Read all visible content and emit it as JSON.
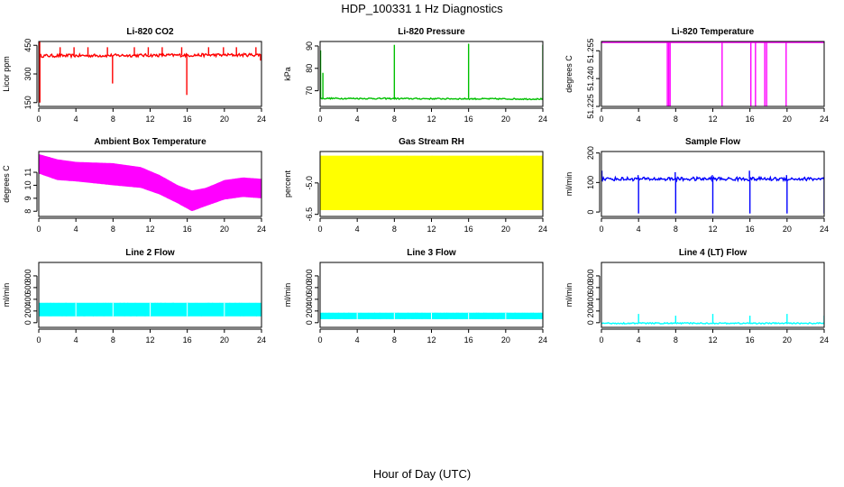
{
  "figure": {
    "title": "HDP_100331  1 Hz Diagnostics",
    "xlabel": "Hour of Day (UTC)"
  },
  "chart_data": [
    {
      "type": "line",
      "title": "Li-820 CO2",
      "ylabel": "Licor ppm",
      "color": "#ff0000",
      "xlim": [
        0,
        24
      ],
      "xticks": [
        "0",
        "4",
        "8",
        "12",
        "16",
        "20",
        "24"
      ],
      "ylim": [
        130,
        470
      ],
      "yticks": [
        "150",
        "300",
        "450"
      ],
      "baseline": [
        395,
        400
      ],
      "noise": 8,
      "spikes": [
        {
          "x": 0.1,
          "y": 470
        },
        {
          "x": 0.12,
          "y": 150
        },
        {
          "x": 2.3,
          "y": 440
        },
        {
          "x": 3.8,
          "y": 440
        },
        {
          "x": 5.3,
          "y": 440
        },
        {
          "x": 7.4,
          "y": 440
        },
        {
          "x": 7.95,
          "y": 250
        },
        {
          "x": 10.3,
          "y": 440
        },
        {
          "x": 11.8,
          "y": 440
        },
        {
          "x": 13.3,
          "y": 440
        },
        {
          "x": 15.4,
          "y": 440
        },
        {
          "x": 15.95,
          "y": 190
        },
        {
          "x": 18.3,
          "y": 440
        },
        {
          "x": 19.9,
          "y": 440
        },
        {
          "x": 21.3,
          "y": 440
        },
        {
          "x": 23.4,
          "y": 440
        },
        {
          "x": 23.9,
          "y": 370
        }
      ]
    },
    {
      "type": "line",
      "title": "Li-820 Pressure",
      "ylabel": "kPa",
      "color": "#00c000",
      "xlim": [
        0,
        24
      ],
      "xticks": [
        "0",
        "4",
        "8",
        "12",
        "16",
        "20",
        "24"
      ],
      "ylim": [
        63,
        92
      ],
      "yticks": [
        "70",
        "80",
        "90"
      ],
      "baseline": [
        66.6,
        66.3
      ],
      "noise": 0.3,
      "spikes": [
        {
          "x": 0.05,
          "y": 88
        },
        {
          "x": 0.3,
          "y": 78
        },
        {
          "x": 8.0,
          "y": 90.5
        },
        {
          "x": 16.0,
          "y": 91
        },
        {
          "x": 24.0,
          "y": 90.5
        }
      ]
    },
    {
      "type": "line",
      "title": "Li-820 Temperature",
      "ylabel": "degrees C",
      "color": "#ff00ff",
      "xlim": [
        0,
        24
      ],
      "xticks": [
        "0",
        "4",
        "8",
        "12",
        "16",
        "20",
        "24"
      ],
      "ylim": [
        51.225,
        51.26
      ],
      "yticks": [
        "51.225",
        "51.240",
        "51.255"
      ],
      "baseline": [
        51.2595,
        51.2595
      ],
      "noise": 0,
      "spikes": [
        {
          "x": 7.1,
          "y": 51.225
        },
        {
          "x": 7.25,
          "y": 51.225
        },
        {
          "x": 7.4,
          "y": 51.225
        },
        {
          "x": 13.0,
          "y": 51.225
        },
        {
          "x": 16.1,
          "y": 51.225
        },
        {
          "x": 16.6,
          "y": 51.225
        },
        {
          "x": 17.6,
          "y": 51.225
        },
        {
          "x": 17.8,
          "y": 51.225
        },
        {
          "x": 19.9,
          "y": 51.225
        }
      ]
    },
    {
      "type": "area",
      "title": "Ambient Box Temperature",
      "ylabel": "degrees C",
      "color": "#ff00ff",
      "xlim": [
        0,
        24
      ],
      "xticks": [
        "0",
        "4",
        "8",
        "12",
        "16",
        "20",
        "24"
      ],
      "ylim": [
        7.6,
        12.6
      ],
      "yticks": [
        "8",
        "9",
        "10",
        "11"
      ],
      "upper": [
        [
          0,
          12.4
        ],
        [
          2,
          12.0
        ],
        [
          4,
          11.8
        ],
        [
          8,
          11.7
        ],
        [
          11,
          11.4
        ],
        [
          13,
          10.8
        ],
        [
          15,
          10.0
        ],
        [
          16.5,
          9.6
        ],
        [
          18,
          9.8
        ],
        [
          20,
          10.4
        ],
        [
          22,
          10.6
        ],
        [
          24,
          10.5
        ]
      ],
      "lower": [
        [
          0,
          10.9
        ],
        [
          2,
          10.4
        ],
        [
          4,
          10.3
        ],
        [
          8,
          10.0
        ],
        [
          11,
          9.8
        ],
        [
          13,
          9.3
        ],
        [
          15,
          8.6
        ],
        [
          16.5,
          8.0
        ],
        [
          18,
          8.4
        ],
        [
          20,
          8.9
        ],
        [
          22,
          9.1
        ],
        [
          24,
          9.0
        ]
      ]
    },
    {
      "type": "area",
      "title": "Gas Stream RH",
      "ylabel": "percent",
      "color": "#ffff00",
      "xlim": [
        0,
        24
      ],
      "xticks": [
        "0",
        "4",
        "8",
        "12",
        "16",
        "20",
        "24"
      ],
      "ylim": [
        -6.6,
        -3.5
      ],
      "yticks": [
        "-6.5",
        "-5.0"
      ],
      "upper": [
        [
          0,
          -3.7
        ],
        [
          24,
          -3.7
        ]
      ],
      "lower": [
        [
          0,
          -6.3
        ],
        [
          24,
          -6.3
        ]
      ]
    },
    {
      "type": "line",
      "title": "Sample Flow",
      "ylabel": "ml/min",
      "color": "#0000ff",
      "xlim": [
        0,
        24
      ],
      "xticks": [
        "0",
        "4",
        "8",
        "12",
        "16",
        "20",
        "24"
      ],
      "ylim": [
        -15,
        205
      ],
      "yticks": [
        "0",
        "100",
        "200"
      ],
      "baseline": [
        112,
        112
      ],
      "noise": 6,
      "spikes": [
        {
          "x": 0.05,
          "y": 140
        },
        {
          "x": 3.95,
          "y": 125
        },
        {
          "x": 4.0,
          "y": -5
        },
        {
          "x": 7.95,
          "y": 135
        },
        {
          "x": 8.0,
          "y": -5
        },
        {
          "x": 11.95,
          "y": 125
        },
        {
          "x": 12.0,
          "y": -5
        },
        {
          "x": 15.95,
          "y": 140
        },
        {
          "x": 16.0,
          "y": -5
        },
        {
          "x": 19.95,
          "y": 125
        },
        {
          "x": 20.0,
          "y": -5
        },
        {
          "x": 23.9,
          "y": 118
        },
        {
          "x": 24.0,
          "y": -5
        }
      ]
    },
    {
      "type": "area",
      "title": "Line 2 Flow",
      "ylabel": "ml/min",
      "color": "#00ffff",
      "xlim": [
        0,
        24
      ],
      "xticks": [
        "0",
        "4",
        "8",
        "12",
        "16",
        "20",
        "24"
      ],
      "ylim": [
        -80,
        1030
      ],
      "yticks": [
        "0",
        "200",
        "400",
        "600",
        "800"
      ],
      "upper": [
        [
          0,
          340
        ],
        [
          24,
          340
        ]
      ],
      "lower": [
        [
          0,
          110
        ],
        [
          24,
          110
        ]
      ],
      "gaps": [
        4,
        8,
        12,
        16,
        20
      ]
    },
    {
      "type": "area",
      "title": "Line 3 Flow",
      "ylabel": "ml/min",
      "color": "#00ffff",
      "xlim": [
        0,
        24
      ],
      "xticks": [
        "0",
        "4",
        "8",
        "12",
        "16",
        "20",
        "24"
      ],
      "ylim": [
        -80,
        1030
      ],
      "yticks": [
        "0",
        "200",
        "400",
        "600",
        "800"
      ],
      "upper": [
        [
          0,
          170
        ],
        [
          24,
          170
        ]
      ],
      "lower": [
        [
          0,
          60
        ],
        [
          24,
          60
        ]
      ],
      "gaps": [
        4,
        8,
        12,
        16,
        20
      ]
    },
    {
      "type": "line",
      "title": "Line 4 (LT) Flow",
      "ylabel": "ml/min",
      "color": "#00ffff",
      "xlim": [
        0,
        24
      ],
      "xticks": [
        "0",
        "4",
        "8",
        "12",
        "16",
        "20",
        "24"
      ],
      "ylim": [
        -80,
        1030
      ],
      "yticks": [
        "0",
        "200",
        "400",
        "600",
        "800"
      ],
      "baseline": [
        -10,
        -10
      ],
      "noise": 10,
      "spikes": [
        {
          "x": 4.0,
          "y": 150
        },
        {
          "x": 8.0,
          "y": 120
        },
        {
          "x": 12.0,
          "y": 150
        },
        {
          "x": 16.0,
          "y": 120
        },
        {
          "x": 20.0,
          "y": 150
        },
        {
          "x": 24.0,
          "y": 120
        }
      ]
    }
  ]
}
